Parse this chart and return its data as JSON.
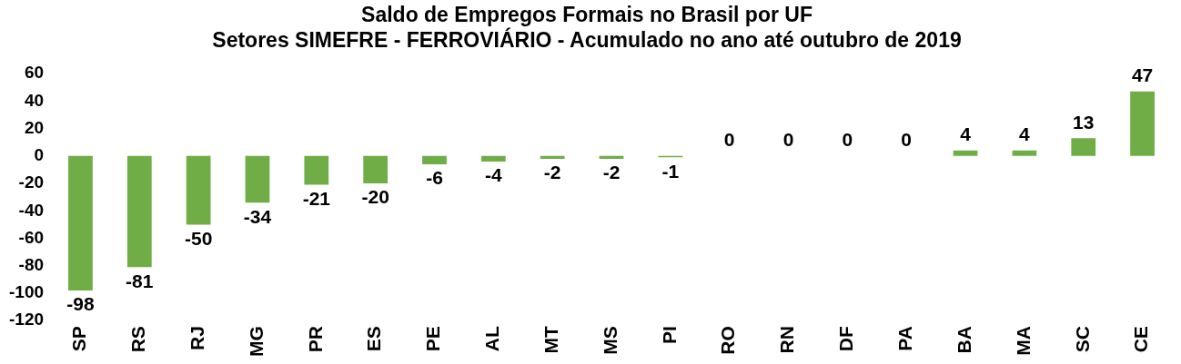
{
  "chart_data": {
    "type": "bar",
    "title": "Saldo de Empregos Formais no Brasil por UF",
    "subtitle": "Setores SIMEFRE - FERROVIÁRIO - Acumulado no ano até outubro de 2019",
    "categories": [
      "SP",
      "RS",
      "RJ",
      "MG",
      "PR",
      "ES",
      "PE",
      "AL",
      "MT",
      "MS",
      "PI",
      "RO",
      "RN",
      "DF",
      "PA",
      "BA",
      "MA",
      "SC",
      "CE"
    ],
    "values": [
      -98,
      -81,
      -50,
      -34,
      -21,
      -20,
      -6,
      -4,
      -2,
      -2,
      -1,
      0,
      0,
      0,
      0,
      4,
      4,
      13,
      47
    ],
    "color": "#70ad47",
    "ylim": [
      -120,
      60
    ],
    "yticks": [
      -120,
      -100,
      -80,
      -60,
      -40,
      -20,
      0,
      20,
      40,
      60
    ],
    "data_labels": true,
    "grid": false,
    "legend": false
  }
}
